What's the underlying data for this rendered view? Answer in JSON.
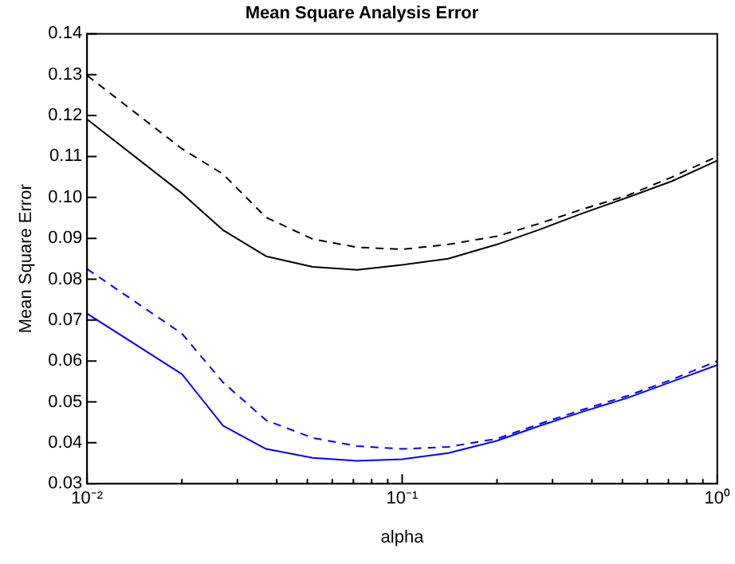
{
  "chart_data": {
    "type": "line",
    "title": "Mean Square Analysis Error",
    "xlabel": "alpha",
    "ylabel": "Mean Square Error",
    "x": [
      0.01,
      0.02,
      0.027,
      0.037,
      0.052,
      0.072,
      0.1,
      0.14,
      0.2,
      0.27,
      0.37,
      0.52,
      0.72,
      1
    ],
    "series": [
      {
        "color": "#000000",
        "line_style": "dashed",
        "values": [
          0.1298,
          0.1119,
          0.1057,
          0.0951,
          0.0898,
          0.0878,
          0.0873,
          0.0885,
          0.0905,
          0.0935,
          0.097,
          0.1005,
          0.105,
          0.11
        ]
      },
      {
        "color": "#000000",
        "line_style": "solid",
        "values": [
          0.1191,
          0.101,
          0.092,
          0.0856,
          0.083,
          0.0823,
          0.0835,
          0.085,
          0.0885,
          0.092,
          0.096,
          0.1,
          0.104,
          0.109
        ]
      },
      {
        "color": "#0000ff",
        "line_style": "dashed",
        "values": [
          0.0825,
          0.0667,
          0.0548,
          0.0455,
          0.0412,
          0.0392,
          0.0385,
          0.039,
          0.041,
          0.0445,
          0.048,
          0.0515,
          0.0555,
          0.06
        ]
      },
      {
        "color": "#0000ff",
        "line_style": "solid",
        "values": [
          0.0716,
          0.0568,
          0.0442,
          0.0385,
          0.0363,
          0.0356,
          0.036,
          0.0375,
          0.0405,
          0.044,
          0.0475,
          0.051,
          0.055,
          0.059
        ]
      }
    ],
    "log": "x",
    "xlim": [
      0.01,
      1
    ],
    "ylim": [
      0.03,
      0.14
    ],
    "xticks": [
      {
        "value": 0.01,
        "label": "10⁻²"
      },
      {
        "value": 0.02,
        "label": null
      },
      {
        "value": 0.03,
        "label": null
      },
      {
        "value": 0.04,
        "label": null
      },
      {
        "value": 0.05,
        "label": null
      },
      {
        "value": 0.06,
        "label": null
      },
      {
        "value": 0.07,
        "label": null
      },
      {
        "value": 0.08,
        "label": null
      },
      {
        "value": 0.09,
        "label": null
      },
      {
        "value": 0.1,
        "label": "10⁻¹"
      },
      {
        "value": 0.2,
        "label": null
      },
      {
        "value": 0.3,
        "label": null
      },
      {
        "value": 0.4,
        "label": null
      },
      {
        "value": 0.5,
        "label": null
      },
      {
        "value": 0.6,
        "label": null
      },
      {
        "value": 0.7,
        "label": null
      },
      {
        "value": 0.8,
        "label": null
      },
      {
        "value": 0.9,
        "label": null
      },
      {
        "value": 1,
        "label": "10⁰"
      }
    ],
    "yticks": [
      0.03,
      0.04,
      0.05,
      0.06,
      0.07,
      0.08,
      0.09,
      {
        "value": 0.1,
        "label": "0.10"
      },
      0.11,
      0.12,
      0.13,
      0.14
    ],
    "grid": false,
    "legend": false,
    "marker": "none"
  }
}
